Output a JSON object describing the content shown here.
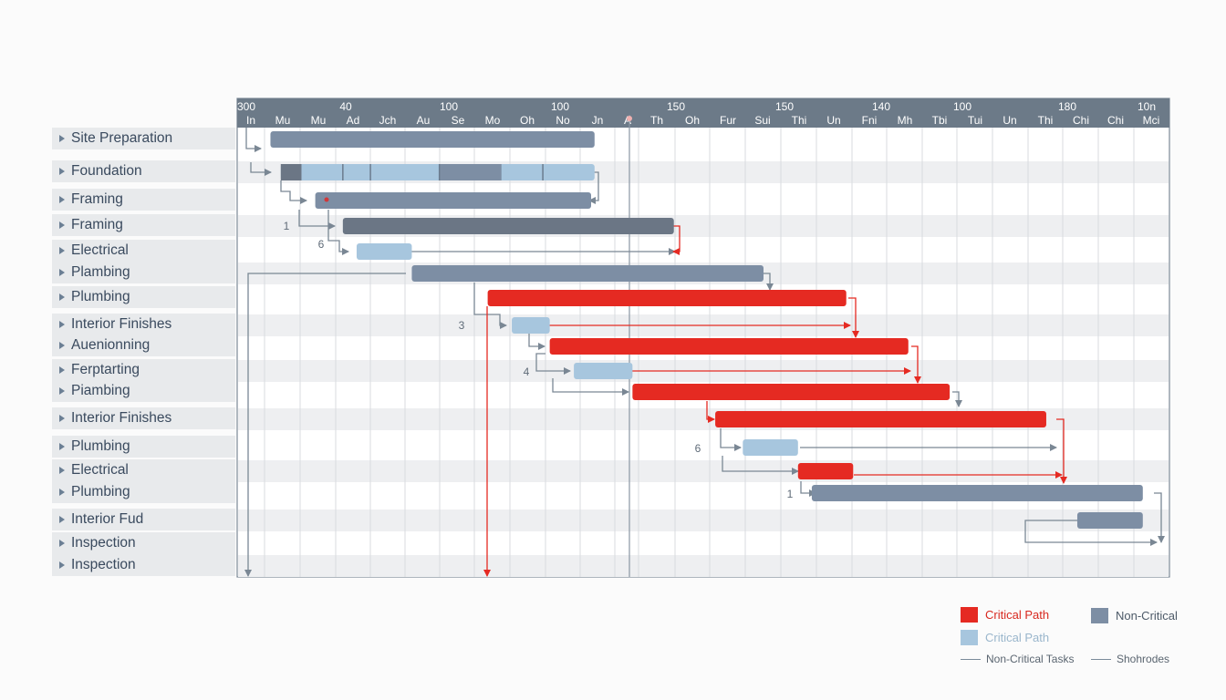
{
  "chart_data": {
    "type": "gantt",
    "title": "",
    "colors": {
      "critical": "#e52a22",
      "critical_light": "#a7c6de",
      "non_critical": "#7d8ea4",
      "non_critical_dark": "#6b7685",
      "connector": "#7a8794",
      "header_bg": "#6c7a88"
    },
    "scale_numbers": [
      "300",
      "40",
      "100",
      "100",
      "150",
      "150",
      "140",
      "100",
      "180",
      "10n"
    ],
    "scale_labels": [
      "In",
      "Mu",
      "Mu",
      "Ad",
      "Jch",
      "Au",
      "Se",
      "Mo",
      "Oh",
      "No",
      "Jn",
      "A",
      "Th",
      "Oh",
      "Fur",
      "Sui",
      "Thi",
      "Un",
      "Fni",
      "Mh",
      "Tbi",
      "Tui",
      "Un",
      "Thi",
      "Chi",
      "Chi",
      "Mci"
    ],
    "tasks": [
      {
        "name": "Site Preparation",
        "start": 7,
        "end": 101,
        "kind": "non-critical"
      },
      {
        "name": "Foundation",
        "start": 10,
        "end": 101,
        "kind": "segmented"
      },
      {
        "name": "Framing",
        "start": 20,
        "end": 100,
        "kind": "non-critical"
      },
      {
        "name": "Framing",
        "start": 28,
        "end": 124,
        "kind": "non-critical-dark"
      },
      {
        "name": "Electrical",
        "start": 32,
        "end": 48,
        "kind": "critical-light"
      },
      {
        "name": "Plambing",
        "start": 48,
        "end": 150,
        "kind": "non-critical"
      },
      {
        "name": "Plumbing",
        "start": 70,
        "end": 174,
        "kind": "critical"
      },
      {
        "name": "Interior Finishes",
        "start": 77,
        "end": 88,
        "kind": "critical-light"
      },
      {
        "name": "Auenionning",
        "start": 88,
        "end": 192,
        "kind": "critical"
      },
      {
        "name": "Ferptarting",
        "start": 95,
        "end": 112,
        "kind": "critical-light"
      },
      {
        "name": "Piambing",
        "start": 112,
        "end": 204,
        "kind": "critical"
      },
      {
        "name": "Interior Finishes",
        "start": 136,
        "end": 232,
        "kind": "critical"
      },
      {
        "name": "Plumbing",
        "start": 144,
        "end": 160,
        "kind": "critical-light"
      },
      {
        "name": "Electrical",
        "start": 160,
        "end": 176,
        "kind": "critical"
      },
      {
        "name": "Plumbing",
        "start": 164,
        "end": 260,
        "kind": "non-critical"
      },
      {
        "name": "Interior Fud",
        "start": 241,
        "end": 260,
        "kind": "non-critical"
      },
      {
        "name": "Inspection",
        "start": null,
        "end": null,
        "kind": "none"
      }
    ],
    "dependency_labels": [
      "1",
      "6",
      "3",
      "4",
      "6",
      "1"
    ],
    "legend": [
      {
        "label": "Critical Path",
        "kind": "critical"
      },
      {
        "label": "Non-Critical",
        "kind": "non-critical"
      },
      {
        "label": "Critical Path",
        "kind": "critical-light"
      },
      {
        "label": "Non-Critical Tasks",
        "kind": "line"
      },
      {
        "label": "Shohrodes",
        "kind": "line"
      }
    ]
  }
}
